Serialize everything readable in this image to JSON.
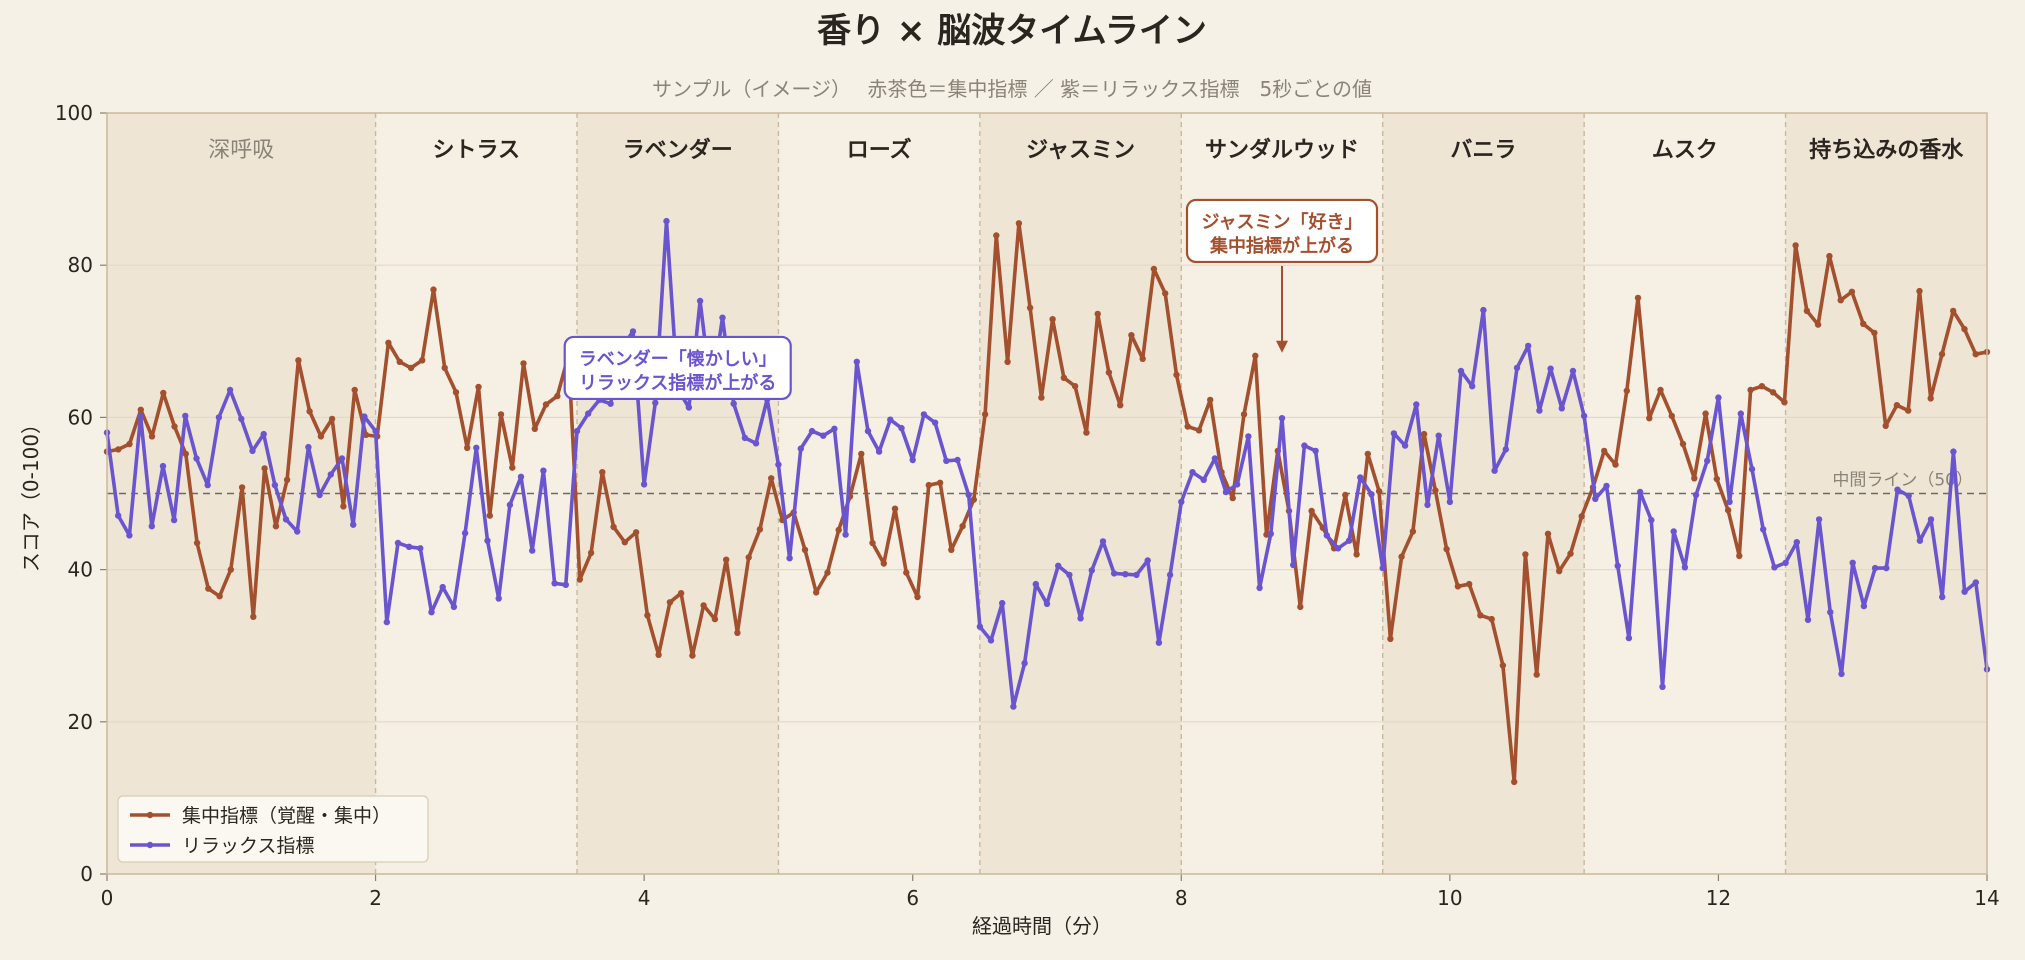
{
  "chart_data": {
    "type": "line",
    "title": "香り × 脳波タイムライン",
    "subtitle": "サンプル（イメージ）　 赤茶色＝集中指標 ／ 紫＝リラックス指標　5秒ごとの値",
    "xlabel": "経過時間（分）",
    "ylabel": "スコア（0-100）",
    "xlim": [
      0,
      14
    ],
    "ylim": [
      0,
      100
    ],
    "x_ticks": [
      "0",
      "2",
      "4",
      "6",
      "8",
      "10",
      "12",
      "14"
    ],
    "y_ticks": [
      "0",
      "20",
      "40",
      "60",
      "80",
      "100"
    ],
    "grid": "horizontal",
    "legend_position": "bottom-left",
    "colors": {
      "focus": "#a3502e",
      "relax": "#6a55cf",
      "band": "#eee5d5",
      "background": "#f6f1e7",
      "plot_background": "#f5efe4"
    },
    "segments": [
      {
        "label": "深呼吸",
        "start": 0,
        "end": 2,
        "shaded": true,
        "muted": true
      },
      {
        "label": "シトラス",
        "start": 2,
        "end": 3.5,
        "shaded": false,
        "muted": false
      },
      {
        "label": "ラベンダー",
        "start": 3.5,
        "end": 5,
        "shaded": true,
        "muted": false
      },
      {
        "label": "ローズ",
        "start": 5,
        "end": 6.5,
        "shaded": false,
        "muted": false
      },
      {
        "label": "ジャスミン",
        "start": 6.5,
        "end": 8,
        "shaded": true,
        "muted": false
      },
      {
        "label": "サンダルウッド",
        "start": 8,
        "end": 9.5,
        "shaded": false,
        "muted": false
      },
      {
        "label": "バニラ",
        "start": 9.5,
        "end": 11,
        "shaded": true,
        "muted": false
      },
      {
        "label": "ムスク",
        "start": 11,
        "end": 12.5,
        "shaded": false,
        "muted": false
      },
      {
        "label": "持ち込みの香水",
        "start": 12.5,
        "end": 14,
        "shaded": true,
        "muted": false
      }
    ],
    "reference_line": {
      "y": 50,
      "label": "中間ライン（50）"
    },
    "annotations": [
      {
        "series": "relax",
        "lines": [
          "ラベンダー「懐かしい」",
          "リラックス指標が上がる"
        ],
        "box_x": 4.25,
        "box_y": 66.5
      },
      {
        "series": "focus",
        "lines": [
          "ジャスミン「好き」",
          "集中指標が上がる"
        ],
        "box_x": 8.75,
        "box_y": 84.5,
        "arrow_to": [
          8.75,
          68.5
        ]
      }
    ],
    "series": [
      {
        "key": "focus",
        "name": "集中指標（覚醒・集中）",
        "color": "#a3502e",
        "values": [
          55.5,
          55.8,
          56.5,
          61,
          57.5,
          63.2,
          58.8,
          55.2,
          43.5,
          37.5,
          36.5,
          40,
          50.8,
          33.8,
          53.3,
          45.7,
          51.8,
          67.5,
          60.8,
          57.5,
          59.8,
          48.3,
          63.6,
          57.7,
          57.5,
          69.8,
          67.3,
          66.5,
          67.5,
          76.8,
          66.5,
          63.3,
          56,
          64,
          47.1,
          60.4,
          53.4,
          67.1,
          58.5,
          61.7,
          62.8,
          68.2,
          38.7,
          42.2,
          52.8,
          45.6,
          43.6,
          44.9,
          34,
          28.8,
          35.7,
          36.9,
          28.7,
          35.3,
          33.5,
          41.3,
          31.7,
          41.6,
          45.3,
          52,
          46.5,
          47.5,
          42.6,
          37,
          39.6,
          45.2,
          49.6,
          55.2,
          43.5,
          40.8,
          48,
          39.6,
          36.4,
          51.1,
          51.4,
          42.6,
          45.7,
          49.2,
          60.4,
          83.9,
          67.3,
          85.5,
          74.4,
          62.6,
          72.9,
          65.2,
          64.1,
          58,
          73.6,
          65.9,
          61.6,
          70.8,
          67.7,
          79.5,
          76.3,
          65.6,
          58.8,
          58.3,
          62.3,
          52.8,
          49.4,
          60.4,
          68.1,
          44.6,
          55.6,
          47.7,
          35.1,
          47.7,
          45.5,
          42.8,
          49.8,
          42,
          55.2,
          50.3,
          30.9,
          41.7,
          45,
          57.8,
          50.4,
          42.7,
          37.8,
          38.1,
          34,
          33.5,
          27.4,
          12.1,
          42,
          26.2,
          44.7,
          39.8,
          42.1,
          47,
          50.8,
          55.6,
          53.8,
          63.5,
          75.7,
          59.9,
          63.6,
          60.2,
          56.5,
          52,
          60.5,
          51.9,
          47.8,
          41.8,
          63.6,
          64.1,
          63.3,
          62,
          82.6,
          74,
          72.2,
          81.2,
          75.4,
          76.5,
          72.3,
          71.1,
          58.9,
          61.6,
          60.9,
          76.6,
          62.5,
          68.3,
          74,
          71.6,
          68.3,
          68.6
        ]
      },
      {
        "key": "relax",
        "name": "リラックス指標",
        "color": "#6a55cf",
        "values": [
          58,
          47.1,
          44.5,
          60.2,
          45.7,
          53.6,
          46.5,
          60.2,
          54.6,
          51.1,
          60,
          63.6,
          59.8,
          55.6,
          57.8,
          51.1,
          46.6,
          45,
          56.1,
          49.8,
          52.5,
          54.6,
          45.9,
          60.1,
          58.2,
          33.1,
          43.5,
          43,
          42.8,
          34.4,
          37.7,
          35.1,
          44.8,
          56,
          43.8,
          36.2,
          48.5,
          52.2,
          42.5,
          53,
          38.2,
          38,
          58.2,
          60.5,
          62.3,
          61.8,
          69.1,
          71.3,
          51.2,
          61.9,
          85.8,
          63.7,
          61.3,
          75.3,
          63.2,
          73.1,
          61.8,
          57.3,
          56.6,
          62.4,
          53.8,
          41.5,
          55.9,
          58.2,
          57.6,
          58.5,
          44.6,
          67.3,
          58.2,
          55.5,
          59.7,
          58.6,
          54.4,
          60.4,
          59.3,
          54.3,
          54.4,
          49.8,
          32.5,
          30.7,
          35.6,
          22,
          27.7,
          38.1,
          35.5,
          40.5,
          39.3,
          33.6,
          39.9,
          43.7,
          39.5,
          39.4,
          39.3,
          41.2,
          30.4,
          39.3,
          48.9,
          52.8,
          51.8,
          54.6,
          50.2,
          51.2,
          57.5,
          37.6,
          44.7,
          59.9,
          40.6,
          56.3,
          55.6,
          44.5,
          42.8,
          43.8,
          52.1,
          49.9,
          40.2,
          57.9,
          56.3,
          61.7,
          48.5,
          57.6,
          48.9,
          66.1,
          64.1,
          74.1,
          53,
          55.8,
          66.5,
          69.4,
          60.9,
          66.4,
          61.2,
          66.1,
          60.2,
          49.3,
          51,
          40.5,
          31,
          50.2,
          46.5,
          24.6,
          45,
          40.3,
          49.8,
          54.3,
          62.6,
          48.9,
          60.5,
          53.2,
          45.3,
          40.3,
          40.9,
          43.6,
          33.4,
          46.6,
          34.4,
          26.3,
          40.9,
          35.2,
          40.2,
          40.2,
          50.5,
          49.7,
          43.8,
          46.6,
          36.4,
          55.5,
          37.1,
          38.3,
          26.9
        ]
      }
    ]
  }
}
